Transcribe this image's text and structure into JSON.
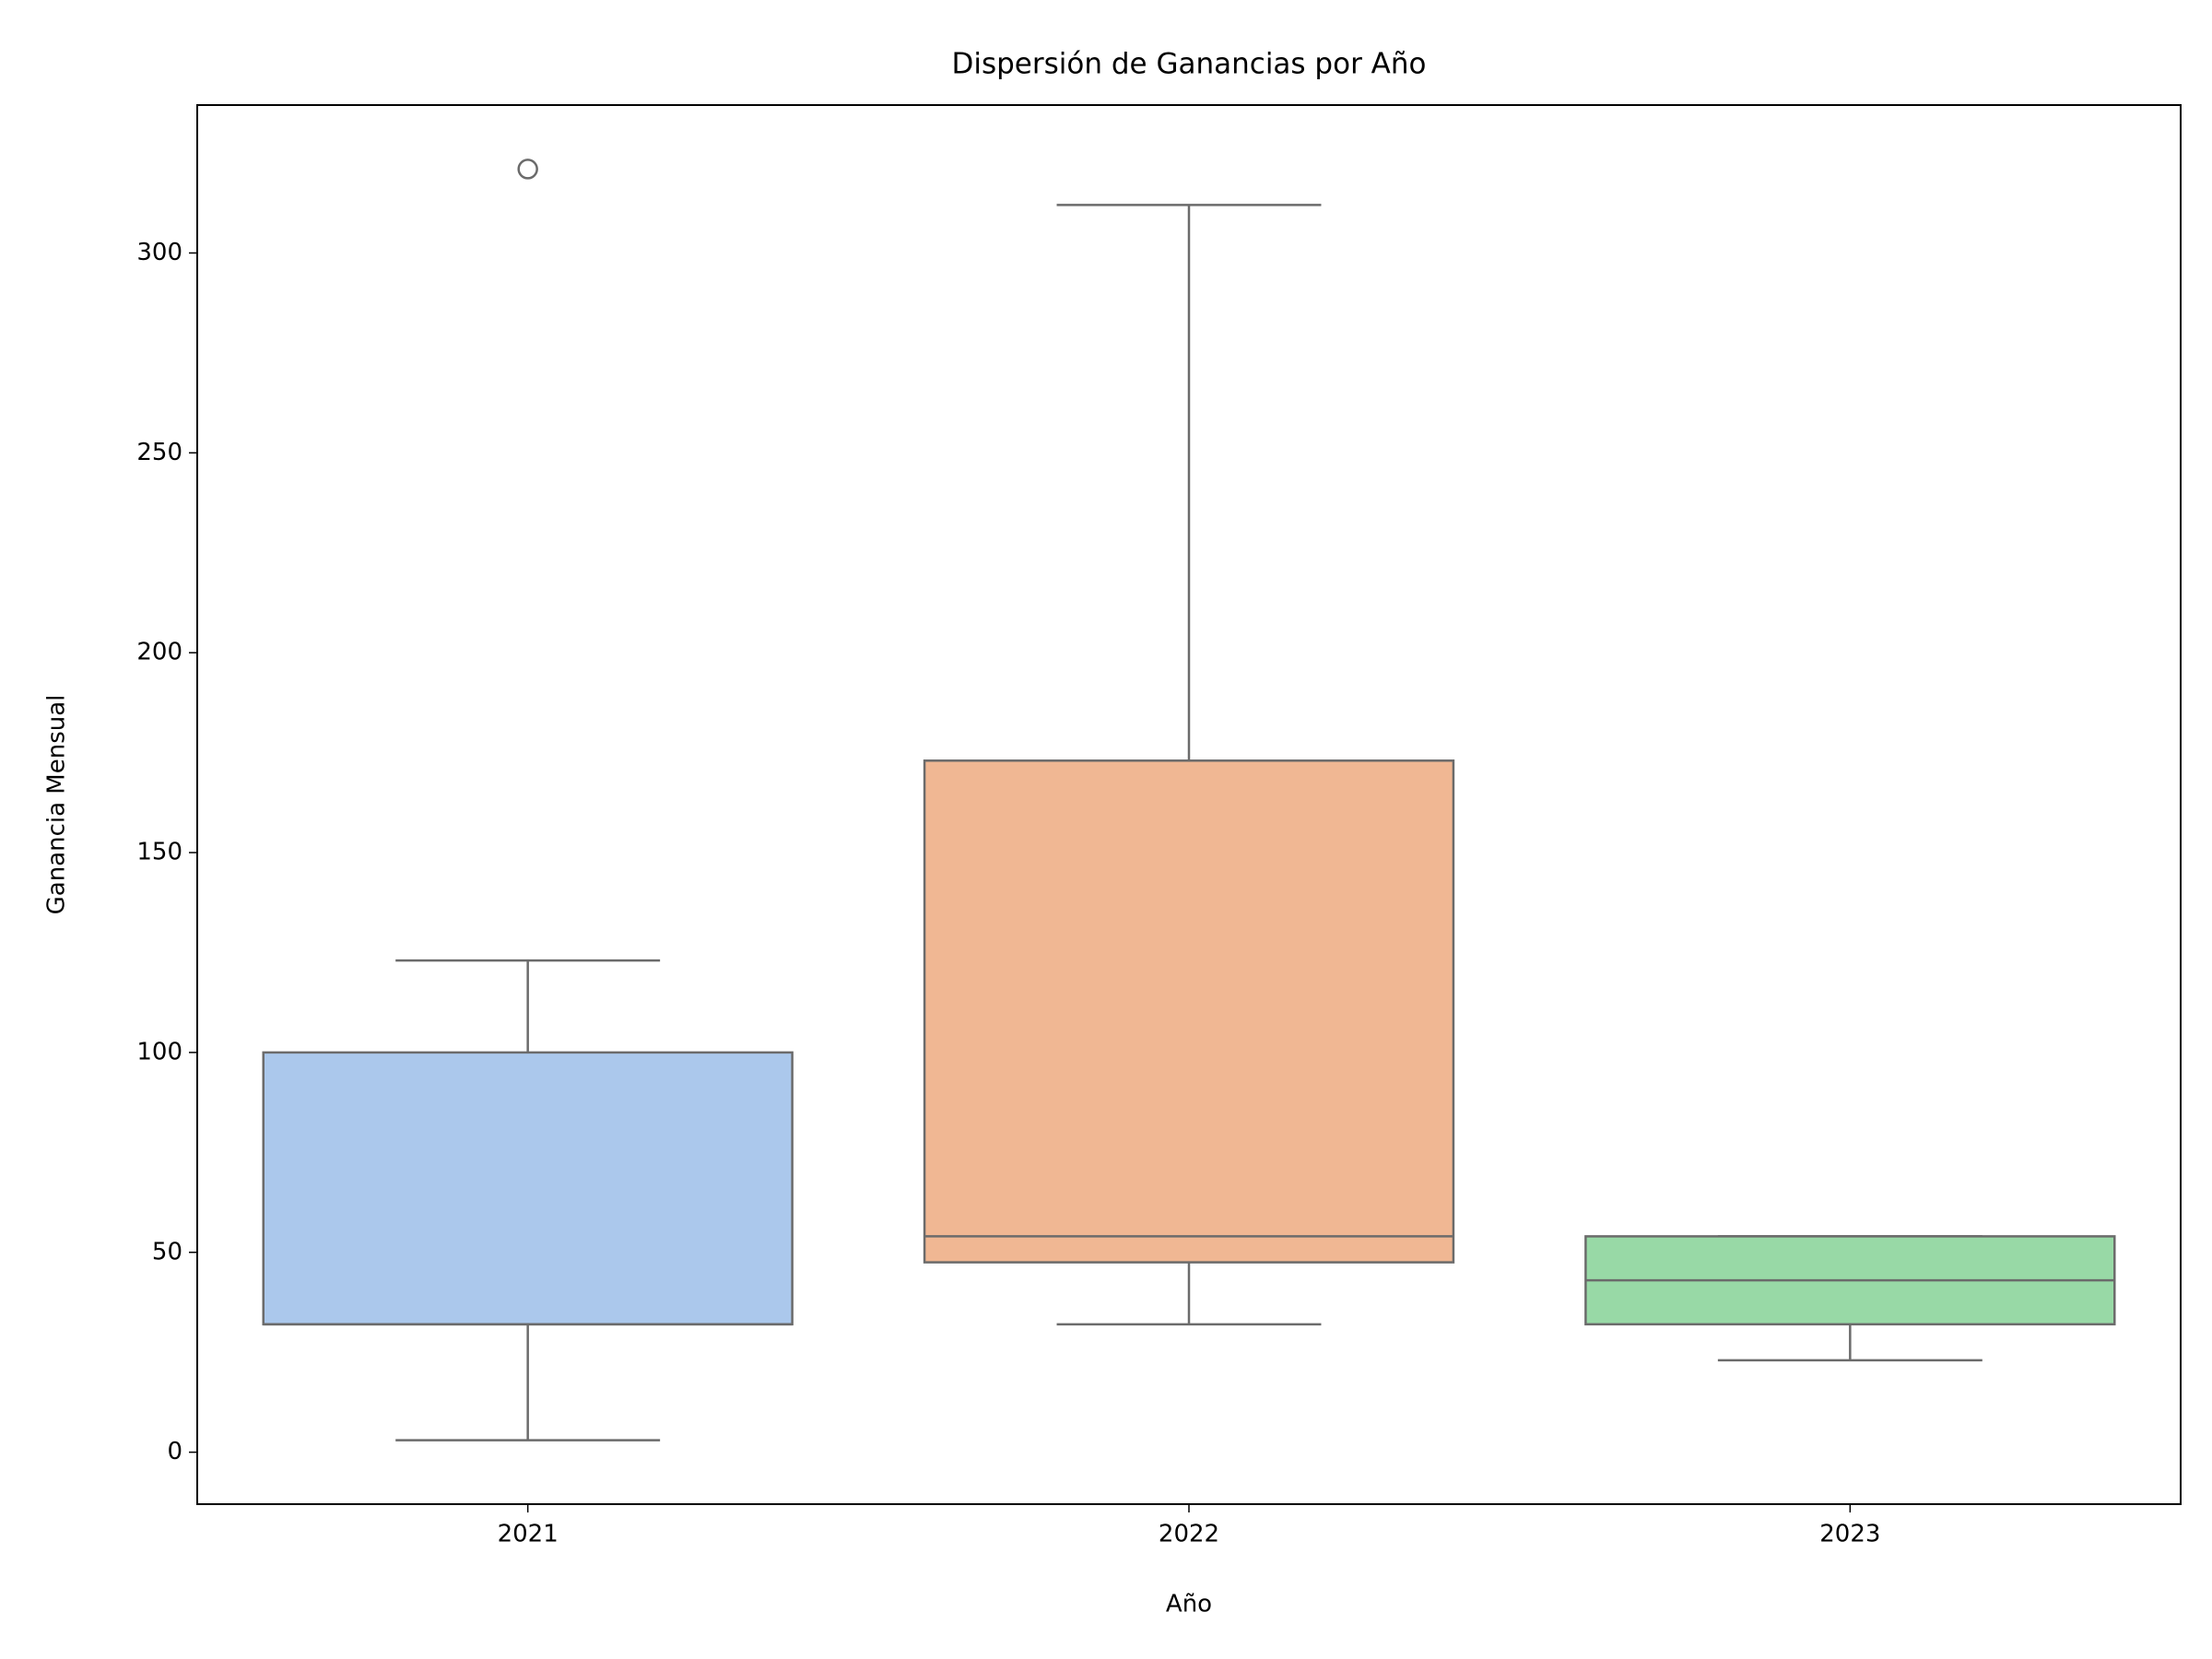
{
  "chart_data": {
    "type": "box",
    "title": "Dispersión de Ganancias por Año",
    "x_label": "Año",
    "y_label": "Ganancia Mensual",
    "categories": [
      "2021",
      "2022",
      "2023"
    ],
    "colors": [
      "#abc8ec",
      "#f0b793",
      "#98d9a6"
    ],
    "whislo": [
      3,
      32,
      23
    ],
    "q1": [
      32,
      47.5,
      32
    ],
    "median": [
      32,
      54,
      43
    ],
    "q3": [
      100,
      173,
      54
    ],
    "whishi": [
      123,
      312,
      54
    ],
    "fliers": [
      [
        321
      ],
      [],
      []
    ],
    "ylim": [
      -13,
      337
    ],
    "yticks": [
      0,
      50,
      100,
      150,
      200,
      250,
      300
    ]
  }
}
